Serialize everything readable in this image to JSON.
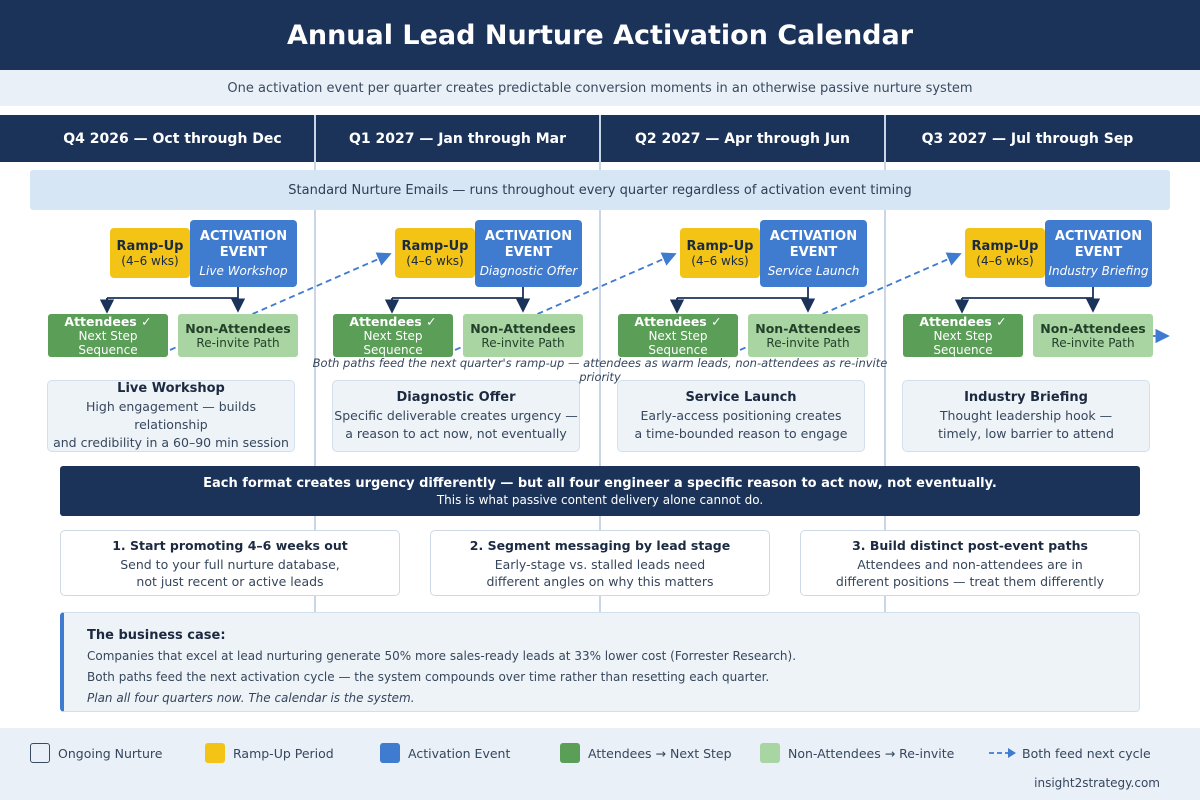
{
  "title": "Annual Lead Nurture Activation Calendar",
  "subtitle": "One activation event per quarter creates predictable conversion moments in an otherwise passive nurture system",
  "quarters": [
    {
      "header": "Q4 2026 — Oct through Dec",
      "ramp_label": "Ramp-Up",
      "ramp_sub": "(4–6 wks)",
      "event_label_1": "ACTIVATION",
      "event_label_2": "EVENT",
      "event_name": "Live Workshop",
      "attendees_label": "Attendees ✓",
      "attendees_sub": "Next Step Sequence",
      "non_label": "Non-Attendees",
      "non_sub": "Re-invite Path",
      "desc_title": "Live Workshop",
      "desc_line1": "High engagement — builds relationship",
      "desc_line2": "and credibility in a 60–90 min session"
    },
    {
      "header": "Q1 2027 — Jan through Mar",
      "ramp_label": "Ramp-Up",
      "ramp_sub": "(4–6 wks)",
      "event_label_1": "ACTIVATION",
      "event_label_2": "EVENT",
      "event_name": "Diagnostic Offer",
      "attendees_label": "Attendees ✓",
      "attendees_sub": "Next Step Sequence",
      "non_label": "Non-Attendees",
      "non_sub": "Re-invite Path",
      "desc_title": "Diagnostic Offer",
      "desc_line1": "Specific deliverable creates urgency —",
      "desc_line2": "a reason to act now, not eventually"
    },
    {
      "header": "Q2 2027 — Apr through Jun",
      "ramp_label": "Ramp-Up",
      "ramp_sub": "(4–6 wks)",
      "event_label_1": "ACTIVATION",
      "event_label_2": "EVENT",
      "event_name": "Service Launch",
      "attendees_label": "Attendees ✓",
      "attendees_sub": "Next Step Sequence",
      "non_label": "Non-Attendees",
      "non_sub": "Re-invite Path",
      "desc_title": "Service Launch",
      "desc_line1": "Early-access positioning creates",
      "desc_line2": "a time-bounded reason to engage"
    },
    {
      "header": "Q3 2027 — Jul through Sep",
      "ramp_label": "Ramp-Up",
      "ramp_sub": "(4–6 wks)",
      "event_label_1": "ACTIVATION",
      "event_label_2": "EVENT",
      "event_name": "Industry Briefing",
      "attendees_label": "Attendees ✓",
      "attendees_sub": "Next Step Sequence",
      "non_label": "Non-Attendees",
      "non_sub": "Re-invite Path",
      "desc_title": "Industry Briefing",
      "desc_line1": "Thought leadership hook —",
      "desc_line2": "timely, low barrier to attend"
    }
  ],
  "nurture_bar": "Standard Nurture Emails — runs throughout every quarter regardless of activation event timing",
  "feed_note": "Both paths feed the next quarter's ramp-up — attendees as warm leads, non-attendees as re-invite priority",
  "urgency": {
    "headline": "Each format creates urgency differently — but all four engineer a specific reason to act now, not eventually.",
    "sub": "This is what passive content delivery alone cannot do."
  },
  "steps": [
    {
      "title": "1. Start promoting 4–6 weeks out",
      "line1": "Send to your full nurture database,",
      "line2": "not just recent or active leads"
    },
    {
      "title": "2. Segment messaging by lead stage",
      "line1": "Early-stage vs. stalled leads need",
      "line2": "different angles on why this matters"
    },
    {
      "title": "3. Build distinct post-event paths",
      "line1": "Attendees and non-attendees are in",
      "line2": "different positions — treat them differently"
    }
  ],
  "business_case": {
    "heading": "The business case:",
    "line1": "Companies that excel at lead nurturing generate 50% more sales-ready leads at 33% lower cost (Forrester Research).",
    "line2": "Both paths feed the next activation cycle — the system compounds over time rather than resetting each quarter.",
    "line3": "Plan all four quarters now. The calendar is the system."
  },
  "legend": {
    "ongoing": "Ongoing Nurture",
    "ramp": "Ramp-Up Period",
    "activation": "Activation Event",
    "attendees": "Attendees → Next Step",
    "non_attendees": "Non-Attendees → Re-invite",
    "feed": "Both feed next cycle"
  },
  "credit": "insight2strategy.com",
  "colors": {
    "navy": "#1b3359",
    "ramp_yellow": "#f3c316",
    "activation_blue": "#3f7bcf",
    "attendees_green": "#5a9e57",
    "non_attendees_green": "#a8d5a2",
    "nurture_light_blue": "#d7e6f5"
  }
}
